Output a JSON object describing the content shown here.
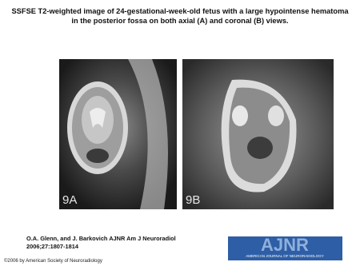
{
  "header": {
    "title_lines": [
      "SSFSE T2-weighted image of 24-gestational-week-old fetus with a large hypointense hematoma",
      "in the posterior fossa on both axial (A) and coronal (B) views."
    ]
  },
  "figures": [
    {
      "label": "9A"
    },
    {
      "label": "9B"
    }
  ],
  "citation": {
    "lines": [
      "O.A. Glenn, and J. Barkovich AJNR Am J Neuroradiol",
      "2006;27:1807-1814"
    ]
  },
  "logo": {
    "title": "AJNR",
    "subtitle": "AMERICAN JOURNAL OF NEURORADIOLOGY"
  },
  "footer": {
    "copyright": "©2006 by American Society of Neuroradiology"
  }
}
